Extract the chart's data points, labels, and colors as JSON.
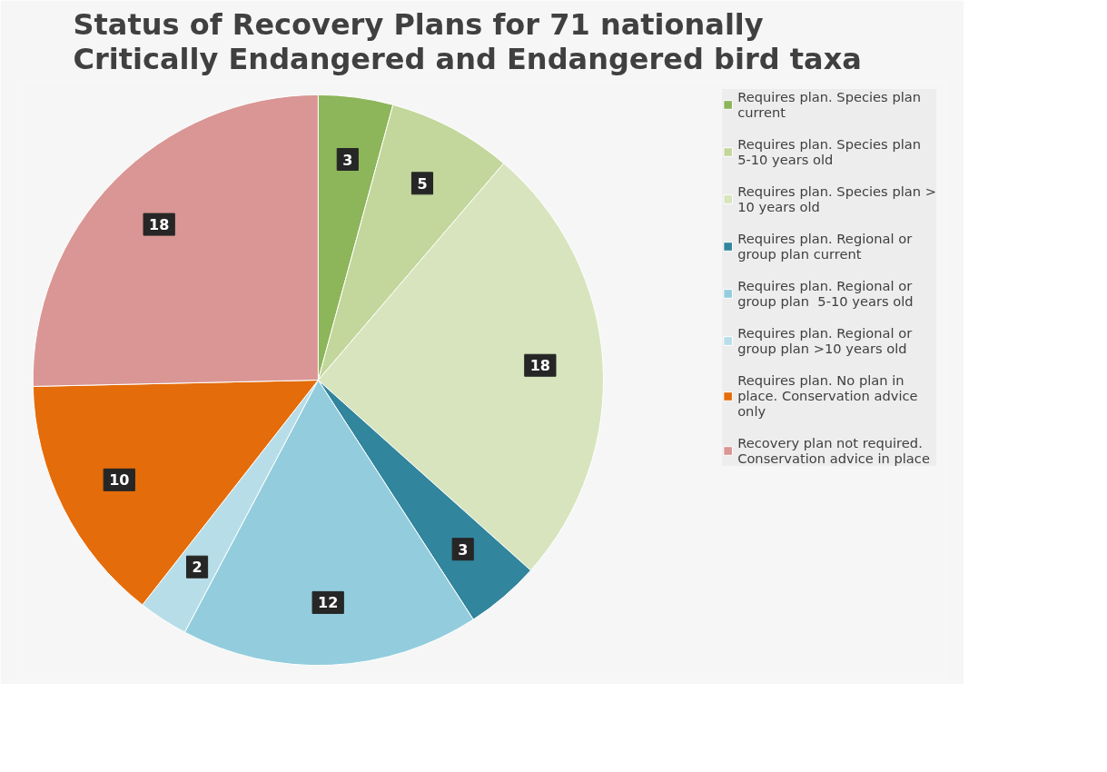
{
  "chart_data": {
    "type": "pie",
    "title": "Status of Recovery Plans for 71 nationally Critically Endangered and Endangered bird taxa",
    "categories": [
      "Requires plan. Species plan current",
      "Requires plan. Species plan 5-10 years old",
      "Requires plan. Species plan > 10 years old",
      "Requires plan. Regional or group plan current",
      "Requires plan. Regional or group plan  5-10 years old",
      "Requires plan. Regional or group plan >10 years old",
      "Requires plan. No plan in place. Conservation advice only",
      "Recovery plan not required. Conservation advice in place"
    ],
    "values": [
      3,
      5,
      18,
      3,
      12,
      2,
      10,
      18
    ],
    "colors": [
      "#8db55a",
      "#c3d69b",
      "#d7e4bd",
      "#31859c",
      "#93cddd",
      "#b7dee8",
      "#e46c0a",
      "#d99694"
    ],
    "data_labels": true,
    "legend": "right"
  }
}
